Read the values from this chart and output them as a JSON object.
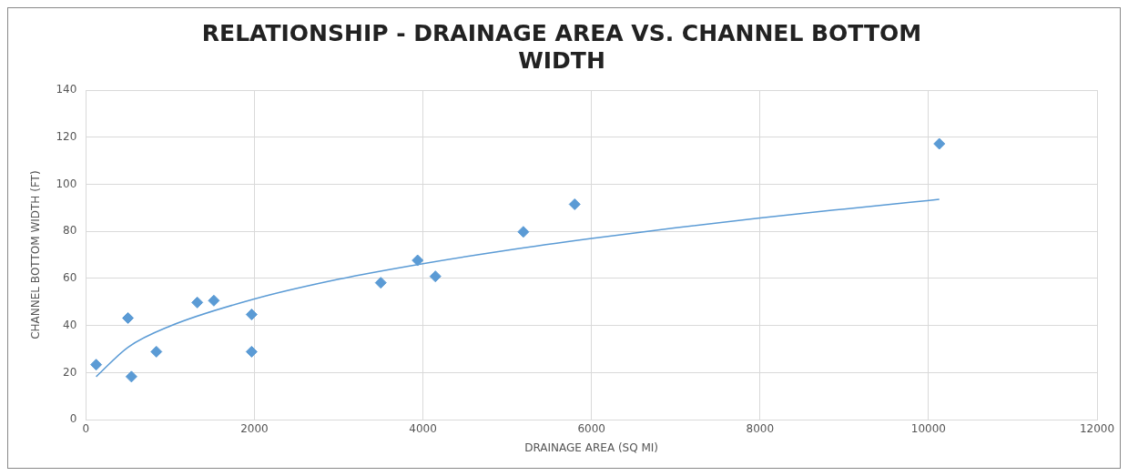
{
  "chart_data": {
    "type": "scatter",
    "title": "RELATIONSHIP - DRAINAGE AREA VS. CHANNEL BOTTOM WIDTH",
    "xlabel": "DRAINAGE AREA (SQ MI)",
    "ylabel": "CHANNEL BOTTOM WIDTH (FT)",
    "x": [
      122,
      500,
      541,
      837,
      1322,
      1519,
      1967,
      1967,
      3500,
      3937,
      4148,
      5192,
      5801,
      10128
    ],
    "series": [
      {
        "type": "scatter",
        "color": "#5b9bd5",
        "marker": "diamond",
        "values": [
          23.4,
          43.2,
          18.3,
          28.9,
          49.8,
          50.6,
          44.7,
          28.9,
          58.2,
          67.7,
          60.9,
          79.8,
          91.5,
          117.2
        ]
      },
      {
        "type": "line",
        "color": "#5b9bd5",
        "marker": "none",
        "x": [
          122,
          500,
          1000,
          2000,
          3000,
          4000,
          5000,
          6000,
          7000,
          8000,
          9000,
          10128
        ],
        "values": [
          18.3,
          30.8,
          39.8,
          51.3,
          59.7,
          66.3,
          72.0,
          77.0,
          81.5,
          85.7,
          89.5,
          93.6
        ]
      }
    ],
    "xlim": [
      0,
      12000
    ],
    "xticks": [
      0,
      2000,
      4000,
      6000,
      8000,
      10000,
      12000
    ],
    "ylim": [
      0,
      140
    ],
    "yticks": [
      0,
      20,
      40,
      60,
      80,
      100,
      120,
      140
    ],
    "grid": true,
    "legend": false
  }
}
